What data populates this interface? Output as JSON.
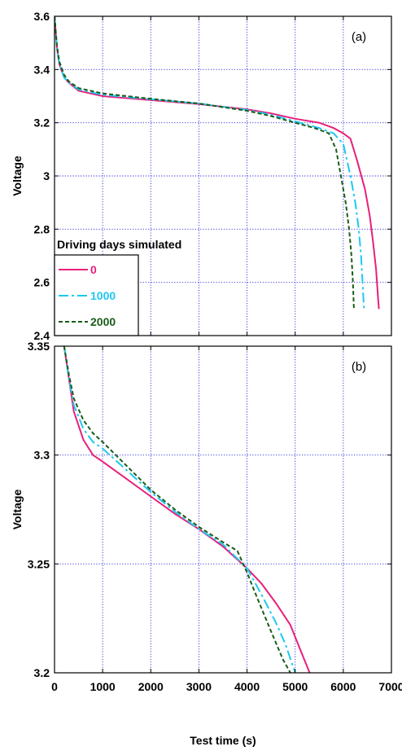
{
  "chart_data": [
    {
      "type": "line",
      "panel_label": "(a)",
      "xlabel": "",
      "ylabel": "Voltage",
      "xlim": [
        0,
        7000
      ],
      "ylim": [
        2.4,
        3.6
      ],
      "xticks": [
        0,
        1000,
        2000,
        3000,
        4000,
        5000,
        6000,
        7000
      ],
      "yticks": [
        2.4,
        2.6,
        2.8,
        3,
        3.2,
        3.4,
        3.6
      ],
      "ytick_labels": [
        "2.4",
        "2.6",
        "2.8",
        "3",
        "3.2",
        "3.4",
        "3.6"
      ],
      "grid": true,
      "legend": {
        "title": "Driving days simulated",
        "placement": "lower-left",
        "entries": [
          "0",
          "1000",
          "2000"
        ]
      },
      "series": [
        {
          "name": "0",
          "color": "#e8207a",
          "dash": "solid",
          "points": [
            [
              0,
              3.6
            ],
            [
              50,
              3.48
            ],
            [
              100,
              3.42
            ],
            [
              200,
              3.37
            ],
            [
              300,
              3.35
            ],
            [
              500,
              3.32
            ],
            [
              1000,
              3.3
            ],
            [
              2000,
              3.285
            ],
            [
              3000,
              3.27
            ],
            [
              4000,
              3.25
            ],
            [
              4500,
              3.235
            ],
            [
              5000,
              3.215
            ],
            [
              5500,
              3.2
            ],
            [
              5800,
              3.18
            ],
            [
              6000,
              3.16
            ],
            [
              6150,
              3.14
            ],
            [
              6300,
              3.05
            ],
            [
              6450,
              2.95
            ],
            [
              6550,
              2.85
            ],
            [
              6620,
              2.75
            ],
            [
              6680,
              2.65
            ],
            [
              6720,
              2.55
            ],
            [
              6740,
              2.5
            ]
          ]
        },
        {
          "name": "1000",
          "color": "#1ec8f0",
          "dash": "dashdot",
          "points": [
            [
              0,
              3.6
            ],
            [
              50,
              3.48
            ],
            [
              100,
              3.42
            ],
            [
              200,
              3.37
            ],
            [
              300,
              3.35
            ],
            [
              500,
              3.325
            ],
            [
              1000,
              3.305
            ],
            [
              2000,
              3.288
            ],
            [
              3000,
              3.272
            ],
            [
              4000,
              3.248
            ],
            [
              4500,
              3.23
            ],
            [
              5000,
              3.205
            ],
            [
              5500,
              3.18
            ],
            [
              5800,
              3.16
            ],
            [
              6000,
              3.12
            ],
            [
              6150,
              3.0
            ],
            [
              6250,
              2.9
            ],
            [
              6320,
              2.8
            ],
            [
              6370,
              2.7
            ],
            [
              6400,
              2.6
            ],
            [
              6430,
              2.5
            ]
          ]
        },
        {
          "name": "2000",
          "color": "#1a5c1a",
          "dash": "dashed",
          "points": [
            [
              0,
              3.6
            ],
            [
              50,
              3.49
            ],
            [
              100,
              3.43
            ],
            [
              200,
              3.38
            ],
            [
              300,
              3.355
            ],
            [
              500,
              3.33
            ],
            [
              1000,
              3.31
            ],
            [
              2000,
              3.29
            ],
            [
              3000,
              3.272
            ],
            [
              4000,
              3.245
            ],
            [
              4500,
              3.225
            ],
            [
              5000,
              3.2
            ],
            [
              5400,
              3.18
            ],
            [
              5700,
              3.16
            ],
            [
              5850,
              3.1
            ],
            [
              5950,
              3.0
            ],
            [
              6050,
              2.9
            ],
            [
              6120,
              2.8
            ],
            [
              6170,
              2.7
            ],
            [
              6200,
              2.6
            ],
            [
              6220,
              2.5
            ]
          ]
        }
      ]
    },
    {
      "type": "line",
      "panel_label": "(b)",
      "xlabel": "Test time (s)",
      "ylabel": "Voltage",
      "xlim": [
        0,
        7000
      ],
      "ylim": [
        3.2,
        3.35
      ],
      "xticks": [
        0,
        1000,
        2000,
        3000,
        4000,
        5000,
        6000,
        7000
      ],
      "xtick_labels": [
        "0",
        "1000",
        "2000",
        "3000",
        "4000",
        "5000",
        "6000",
        "7000"
      ],
      "yticks": [
        3.2,
        3.25,
        3.3,
        3.35
      ],
      "ytick_labels": [
        "3.2",
        "3.25",
        "3.3",
        "3.35"
      ],
      "grid": true,
      "series": [
        {
          "name": "0",
          "color": "#e8207a",
          "dash": "solid",
          "points": [
            [
              200,
              3.35
            ],
            [
              300,
              3.335
            ],
            [
              400,
              3.32
            ],
            [
              600,
              3.307
            ],
            [
              800,
              3.3
            ],
            [
              1000,
              3.297
            ],
            [
              1500,
              3.289
            ],
            [
              2000,
              3.281
            ],
            [
              2500,
              3.273
            ],
            [
              3000,
              3.266
            ],
            [
              3500,
              3.258
            ],
            [
              4000,
              3.248
            ],
            [
              4300,
              3.241
            ],
            [
              4600,
              3.232
            ],
            [
              4900,
              3.222
            ],
            [
              5100,
              3.211
            ],
            [
              5300,
              3.2
            ]
          ]
        },
        {
          "name": "1000",
          "color": "#1ec8f0",
          "dash": "dashdot",
          "points": [
            [
              200,
              3.35
            ],
            [
              300,
              3.335
            ],
            [
              400,
              3.323
            ],
            [
              600,
              3.312
            ],
            [
              800,
              3.306
            ],
            [
              1000,
              3.303
            ],
            [
              1500,
              3.293
            ],
            [
              2000,
              3.283
            ],
            [
              2500,
              3.274
            ],
            [
              3000,
              3.266
            ],
            [
              3500,
              3.259
            ],
            [
              4000,
              3.248
            ],
            [
              4300,
              3.236
            ],
            [
              4600,
              3.223
            ],
            [
              4800,
              3.213
            ],
            [
              5000,
              3.2
            ]
          ]
        },
        {
          "name": "2000",
          "color": "#1a5c1a",
          "dash": "dashed",
          "points": [
            [
              200,
              3.35
            ],
            [
              300,
              3.337
            ],
            [
              400,
              3.326
            ],
            [
              600,
              3.316
            ],
            [
              800,
              3.31
            ],
            [
              1000,
              3.306
            ],
            [
              1500,
              3.295
            ],
            [
              2000,
              3.284
            ],
            [
              2500,
              3.275
            ],
            [
              3000,
              3.267
            ],
            [
              3500,
              3.26
            ],
            [
              3800,
              3.256
            ],
            [
              4000,
              3.246
            ],
            [
              4200,
              3.235
            ],
            [
              4500,
              3.219
            ],
            [
              4750,
              3.206
            ],
            [
              4900,
              3.2
            ]
          ]
        }
      ]
    }
  ]
}
